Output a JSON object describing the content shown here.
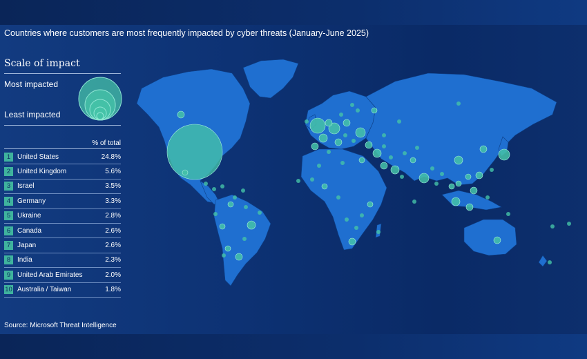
{
  "title": "Countries where customers are most frequently impacted by cyber threats  (January-June 2025)",
  "legend": {
    "title": "Scale of impact",
    "most": "Most impacted",
    "least": "Least impacted"
  },
  "table": {
    "header": "% of total",
    "rows": [
      {
        "rank": "1",
        "country": "United States",
        "pct": "24.8%"
      },
      {
        "rank": "2",
        "country": "United Kingdom",
        "pct": "5.6%"
      },
      {
        "rank": "3",
        "country": "Israel",
        "pct": "3.5%"
      },
      {
        "rank": "4",
        "country": "Germany",
        "pct": "3.3%"
      },
      {
        "rank": "5",
        "country": "Ukraine",
        "pct": "2.8%"
      },
      {
        "rank": "6",
        "country": "Canada",
        "pct": "2.6%"
      },
      {
        "rank": "7",
        "country": "Japan",
        "pct": "2.6%"
      },
      {
        "rank": "8",
        "country": "India",
        "pct": "2.3%"
      },
      {
        "rank": "9",
        "country": "United Arab Emirates",
        "pct": "2.0%"
      },
      {
        "rank": "10",
        "country": "Australia / Taiwan",
        "pct": "1.8%"
      }
    ]
  },
  "source": "Source: Microsoft Threat Intelligence",
  "colors": {
    "background": "#0d3274",
    "land": "#1f6fd0",
    "bubble": "#45c3a8",
    "badge": "#3fb39e"
  }
}
